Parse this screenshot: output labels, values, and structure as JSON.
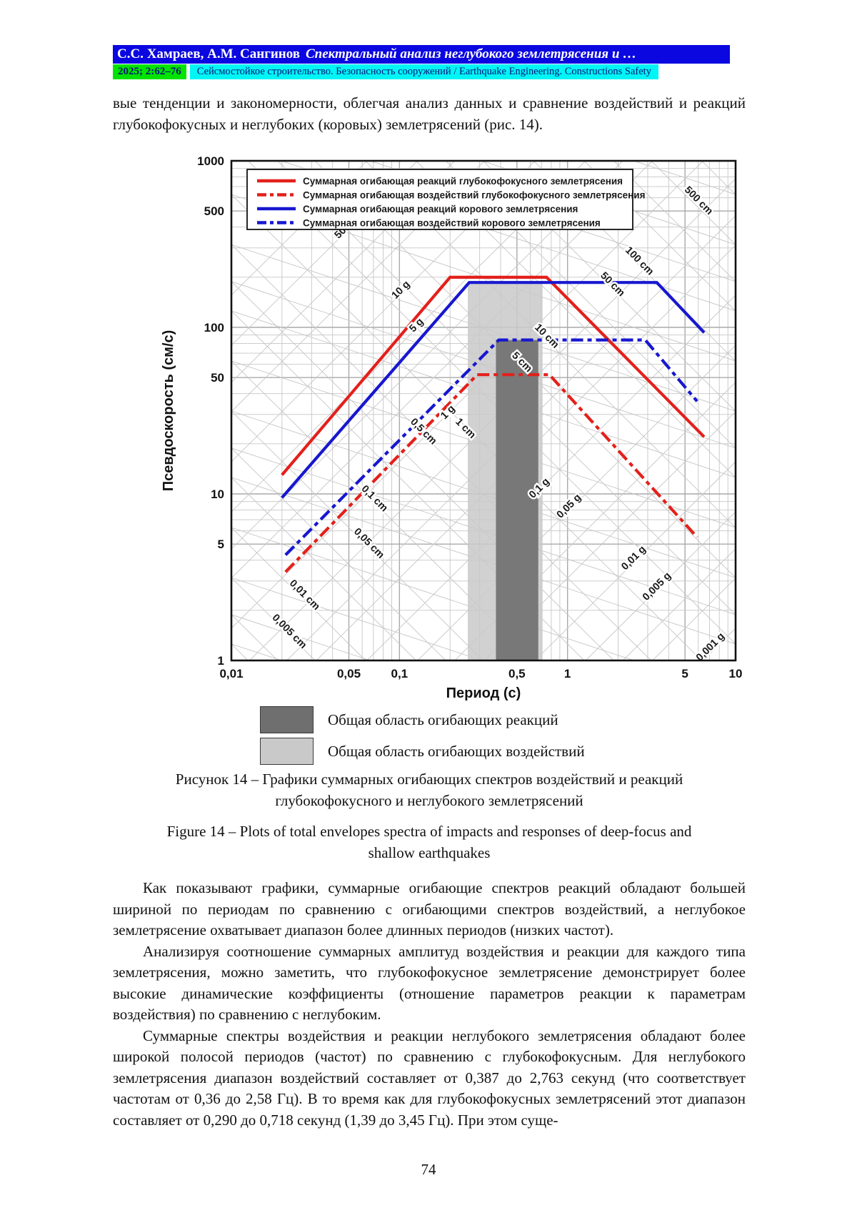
{
  "header": {
    "authors": "С.С. Хамраев, А.М. Сангинов",
    "article_title": "Спектральный анализ неглубокого землетрясения и …",
    "issue": "2025; 2:62–76",
    "journal": "Сейсмостойкое строительство. Безопасность сооружений / Earthquake Engineering. Constructions Safety",
    "colors": {
      "title_bg": "#0a07e0",
      "title_fg": "#ffffff",
      "issue_bg": "#00e400",
      "issue_fg": "#00137d",
      "journal_bg": "#00f5f5",
      "journal_fg": "#00137d"
    }
  },
  "paragraphs": {
    "intro": "вые тенденции и закономерности, облегчая анализ данных и сравнение воздействий и реакций глубокофокусных и неглубоких (коровых) землетрясений (рис. 14).",
    "p1": "Как показывают графики, суммарные огибающие спектров реакций обладают большей шириной по периодам по сравнению с огибающими спектров воздействий, а неглубокое землетрясение охватывает диапазон более длинных периодов (низких частот).",
    "p2": "Анализируя соотношение суммарных амплитуд воздействия и реакции для каждого типа землетрясения, можно заметить, что глубокофокусное землетрясение демонстрирует более высокие динамические коэффициенты (отношение параметров реакции к параметрам воздействия) по сравнению с неглубоким.",
    "p3": "Суммарные спектры воздействия и реакции неглубокого землетрясения обладают более широкой полосой периодов (частот) по сравнению с глубокофокусным. Для неглубокого землетрясения диапазон воздействий составляет от 0,387 до 2,763 секунд (что соответствует частотам от 0,36 до 2,58 Гц). В то время как для глубокофокусных землетрясений этот диапазон составляет от 0,290 до 0,718 секунд (1,39 до 3,45 Гц). При этом суще-"
  },
  "captions": {
    "ru1": "Рисунок 14 – Графики суммарных огибающих спектров воздействий и реакций",
    "ru2": "глубокофокусного и неглубокого землетрясений",
    "en1": "Figure 14 – Plots of total envelopes spectra of impacts and responses of deep-focus and",
    "en2": "shallow earthquakes"
  },
  "figure_key": [
    {
      "swatch_color": "#6f6f6f",
      "label": "Общая область огибающих реакций"
    },
    {
      "swatch_color": "#c9c9c9",
      "label": "Общая область огибающих воздействий"
    }
  ],
  "page_number": "74",
  "chart_data": {
    "type": "line",
    "xlabel": "Период (с)",
    "ylabel": "Псевдоскорость (см/с)",
    "xscale": "log",
    "yscale": "log",
    "xlim": [
      0.01,
      10
    ],
    "ylim": [
      1,
      1000
    ],
    "x_ticks": [
      {
        "v": 0.01,
        "label": "0,01"
      },
      {
        "v": 0.05,
        "label": "0,05"
      },
      {
        "v": 0.1,
        "label": "0,1"
      },
      {
        "v": 0.5,
        "label": "0,5"
      },
      {
        "v": 1,
        "label": "1"
      },
      {
        "v": 5,
        "label": "5"
      },
      {
        "v": 10,
        "label": "10"
      }
    ],
    "y_ticks": [
      {
        "v": 1000,
        "label": "1000"
      },
      {
        "v": 500,
        "label": "500"
      },
      {
        "v": 100,
        "label": "100"
      },
      {
        "v": 50,
        "label": "50"
      },
      {
        "v": 10,
        "label": "10"
      },
      {
        "v": 5,
        "label": "5"
      },
      {
        "v": 1,
        "label": "1"
      }
    ],
    "legend": [
      {
        "name": "Суммарная огибающая реакций глубокофокусного землетрясения",
        "color": "#e3201b",
        "dash": false
      },
      {
        "name": "Суммарная огибающая воздействий глубокофокусного землетрясения",
        "color": "#e3201b",
        "dash": true
      },
      {
        "name": "Суммарная огибающая реакций корового землетрясения",
        "color": "#1717cf",
        "dash": false
      },
      {
        "name": "Суммарная огибающая воздействий корового землетрясения",
        "color": "#1717cf",
        "dash": true
      }
    ],
    "series": [
      {
        "name": "Суммарная огибающая реакций глубокофокусного землетрясения",
        "color": "#e3201b",
        "dash": false,
        "points": [
          [
            0.02,
            13
          ],
          [
            0.2,
            200
          ],
          [
            0.75,
            200
          ],
          [
            6.5,
            22
          ]
        ]
      },
      {
        "name": "Суммарная огибающая реакций корового землетрясения",
        "color": "#1717cf",
        "dash": false,
        "points": [
          [
            0.02,
            9.5
          ],
          [
            0.26,
            186
          ],
          [
            3.4,
            186
          ],
          [
            6.5,
            93
          ]
        ]
      },
      {
        "name": "Суммарная огибающая воздействий корового землетрясения",
        "color": "#1717cf",
        "dash": true,
        "points": [
          [
            0.021,
            4.3
          ],
          [
            0.39,
            84
          ],
          [
            2.9,
            84
          ],
          [
            5.9,
            36
          ]
        ]
      },
      {
        "name": "Суммарная огибающая воздействий глубокофокусного землетрясения",
        "color": "#e3201b",
        "dash": true,
        "points": [
          [
            0.021,
            3.4
          ],
          [
            0.29,
            52
          ],
          [
            0.78,
            52
          ],
          [
            5.9,
            5.5
          ]
        ]
      }
    ],
    "bands": [
      {
        "label": "Общая область огибающих воздействий",
        "color": "#c9c9c9",
        "opacity": 0.85,
        "t_range": [
          0.255,
          0.71
        ],
        "v_top": 186
      },
      {
        "label": "Общая область огибающих реакций",
        "color": "#757575",
        "opacity": 0.97,
        "t_range": [
          0.375,
          0.67
        ],
        "v_top": 84
      }
    ],
    "accel_labels": [
      {
        "t": 0.048,
        "v": 375,
        "label": "50 g"
      },
      {
        "t": 0.105,
        "v": 163,
        "label": "10 g"
      },
      {
        "t": 0.13,
        "v": 100,
        "label": "5 g"
      },
      {
        "t": 0.2,
        "v": 30,
        "label": "1 g"
      },
      {
        "t": 0.7,
        "v": 10.5,
        "label": "0,1 g"
      },
      {
        "t": 1.05,
        "v": 8.2,
        "label": "0,05 g"
      },
      {
        "t": 2.55,
        "v": 4.0,
        "label": "0,01 g"
      },
      {
        "t": 3.5,
        "v": 2.7,
        "label": "0,005 g"
      },
      {
        "t": 7.3,
        "v": 1.17,
        "label": "0,001 g"
      }
    ],
    "disp_labels": [
      {
        "t": 5.85,
        "v": 560,
        "label": "500 cm"
      },
      {
        "t": 2.6,
        "v": 243,
        "label": "100 cm"
      },
      {
        "t": 1.8,
        "v": 176,
        "label": "50 cm"
      },
      {
        "t": 0.73,
        "v": 86,
        "label": "10 cm"
      },
      {
        "t": 0.52,
        "v": 60,
        "label": "5 cm"
      },
      {
        "t": 0.24,
        "v": 24,
        "label": "1 cm"
      },
      {
        "t": 0.135,
        "v": 23,
        "label": "0,5 cm"
      },
      {
        "t": 0.069,
        "v": 9.1,
        "label": "0,1 cm"
      },
      {
        "t": 0.064,
        "v": 4.9,
        "label": "0,05 cm"
      },
      {
        "t": 0.0265,
        "v": 2.4,
        "label": "0,01 cm"
      },
      {
        "t": 0.0215,
        "v": 1.45,
        "label": "0,005 cm"
      }
    ],
    "grid": {
      "accel_values_g": [
        0.001,
        0.002,
        0.003,
        0.005,
        0.01,
        0.02,
        0.03,
        0.05,
        0.1,
        0.2,
        0.3,
        0.5,
        1,
        2,
        3,
        5,
        10,
        20,
        30,
        50,
        100
      ],
      "disp_values_cm": [
        0.001,
        0.002,
        0.003,
        0.005,
        0.01,
        0.02,
        0.03,
        0.05,
        0.1,
        0.2,
        0.3,
        0.5,
        1,
        2,
        3,
        5,
        10,
        20,
        30,
        50,
        100,
        200,
        300,
        500,
        1000,
        2000
      ],
      "color_minor": "#c6c6c6",
      "color_major": "#a9a9a9"
    }
  }
}
